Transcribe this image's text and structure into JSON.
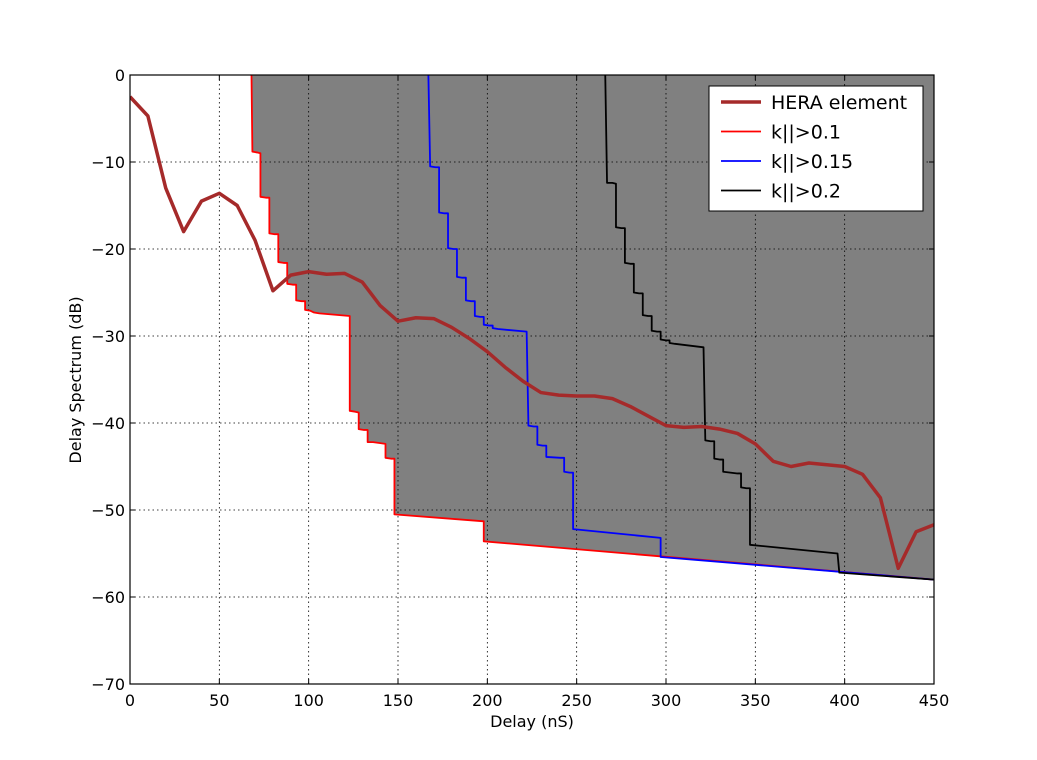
{
  "chart_data": {
    "type": "line",
    "xlabel": "Delay (nS)",
    "ylabel": "Delay Spectrum (dB)",
    "xlim": [
      0,
      450
    ],
    "ylim": [
      -70,
      0
    ],
    "x_ticks": [
      0,
      50,
      100,
      150,
      200,
      250,
      300,
      350,
      400,
      450
    ],
    "y_ticks": [
      0,
      -10,
      -20,
      -30,
      -40,
      -50,
      -60,
      -70
    ],
    "x_tick_labels": [
      "0",
      "50",
      "100",
      "150",
      "200",
      "250",
      "300",
      "350",
      "400",
      "450"
    ],
    "y_tick_labels": [
      "0",
      "−10",
      "−20",
      "−30",
      "−40",
      "−50",
      "−60",
      "−70"
    ],
    "grid": true,
    "legend_position": "top-right",
    "series": [
      {
        "name": "HERA element",
        "color": "#a52a2a",
        "x": [
          0,
          10,
          20,
          30,
          40,
          50,
          60,
          70,
          80,
          90,
          100,
          110,
          120,
          130,
          140,
          150,
          160,
          170,
          180,
          190,
          200,
          210,
          220,
          230,
          240,
          250,
          260,
          270,
          280,
          290,
          300,
          310,
          320,
          330,
          340,
          350,
          360,
          370,
          380,
          390,
          400,
          410,
          420,
          430,
          440,
          450
        ],
        "y": [
          -2.5,
          -4.7,
          -13,
          -18,
          -14.5,
          -13.6,
          -15,
          -19,
          -24.8,
          -23,
          -22.6,
          -22.9,
          -22.8,
          -23.8,
          -26.5,
          -28.3,
          -27.9,
          -28,
          -29,
          -30.3,
          -31.8,
          -33.6,
          -35.2,
          -36.5,
          -36.8,
          -36.9,
          -36.9,
          -37.2,
          -38.1,
          -39.2,
          -40.3,
          -40.5,
          -40.4,
          -40.7,
          -41.2,
          -42.4,
          -44.4,
          -45,
          -44.6,
          -44.8,
          -45,
          -45.9,
          -48.6,
          -56.7,
          -52.5,
          -51.7
        ]
      },
      {
        "name": "k||>0.1",
        "color": "#ff0000",
        "x": [
          68,
          68.5,
          71,
          73,
          73,
          76,
          78,
          78,
          81,
          83,
          83,
          86,
          88,
          88,
          91,
          93,
          93,
          96,
          98,
          98,
          101,
          103,
          103,
          106,
          123,
          123,
          126,
          128,
          128,
          131,
          133,
          133,
          136,
          143,
          143,
          146,
          148,
          148,
          198,
          198,
          450
        ],
        "y": [
          0,
          -8.8,
          -8.9,
          -9,
          -14,
          -14.1,
          -14.1,
          -18.2,
          -18.3,
          -18.3,
          -21.5,
          -21.6,
          -21.6,
          -24,
          -24.1,
          -24.1,
          -25.9,
          -26,
          -26,
          -27,
          -27.1,
          -27.3,
          -27.3,
          -27.4,
          -27.7,
          -38.6,
          -38.7,
          -38.8,
          -40.7,
          -40.8,
          -40.8,
          -42.2,
          -42.2,
          -42.4,
          -44,
          -44.1,
          -44.1,
          -50.5,
          -51.3,
          -53.6,
          -58
        ]
      },
      {
        "name": "k||>0.15",
        "color": "#0000ff",
        "x": [
          167,
          168,
          171,
          173,
          173,
          176,
          178,
          178,
          181,
          183,
          183,
          186,
          188,
          188,
          191,
          193,
          193,
          196,
          198,
          198,
          201,
          203,
          203,
          206,
          222,
          223,
          226,
          228,
          228,
          231,
          233,
          233,
          241,
          243,
          243,
          246,
          248,
          248,
          297,
          297,
          450
        ],
        "y": [
          0,
          -10.5,
          -10.6,
          -10.6,
          -15.8,
          -15.9,
          -15.9,
          -19.9,
          -20,
          -20,
          -23.2,
          -23.3,
          -23.3,
          -25.9,
          -26,
          -26,
          -27.7,
          -27.8,
          -27.8,
          -28.7,
          -28.8,
          -28.8,
          -29.1,
          -29.2,
          -29.5,
          -40.3,
          -40.4,
          -40.4,
          -42.5,
          -42.6,
          -42.6,
          -43.9,
          -44,
          -44,
          -45.6,
          -45.7,
          -45.7,
          -52.2,
          -53.2,
          -55.4,
          -58
        ]
      },
      {
        "name": "k||>0.2",
        "color": "#000000",
        "x": [
          266,
          267,
          270,
          272,
          272,
          275,
          277,
          277,
          280,
          282,
          282,
          285,
          287,
          287,
          290,
          292,
          292,
          295,
          297,
          297,
          300,
          302,
          302,
          305,
          321,
          322,
          325,
          327,
          327,
          330,
          332,
          332,
          340,
          342,
          342,
          345,
          347,
          347,
          396,
          397,
          450
        ],
        "y": [
          0,
          -12.4,
          -12.4,
          -12.5,
          -17.5,
          -17.6,
          -17.6,
          -21.6,
          -21.7,
          -21.7,
          -25,
          -25.1,
          -25.1,
          -27.6,
          -27.7,
          -27.7,
          -29.4,
          -29.5,
          -29.5,
          -30.4,
          -30.5,
          -30.5,
          -30.8,
          -30.9,
          -31.3,
          -42,
          -42.1,
          -42.1,
          -44.1,
          -44.2,
          -44.2,
          -45.6,
          -45.8,
          -45.8,
          -47.4,
          -47.5,
          -47.5,
          -54,
          -55,
          -57.2,
          -58
        ]
      }
    ],
    "shaded_regions": [
      {
        "series": "k||>0.1",
        "fill": "#808080"
      },
      {
        "series": "k||>0.15",
        "fill": "#b0b0b0"
      },
      {
        "series": "k||>0.2",
        "fill": "#d3d3d3"
      }
    ]
  }
}
